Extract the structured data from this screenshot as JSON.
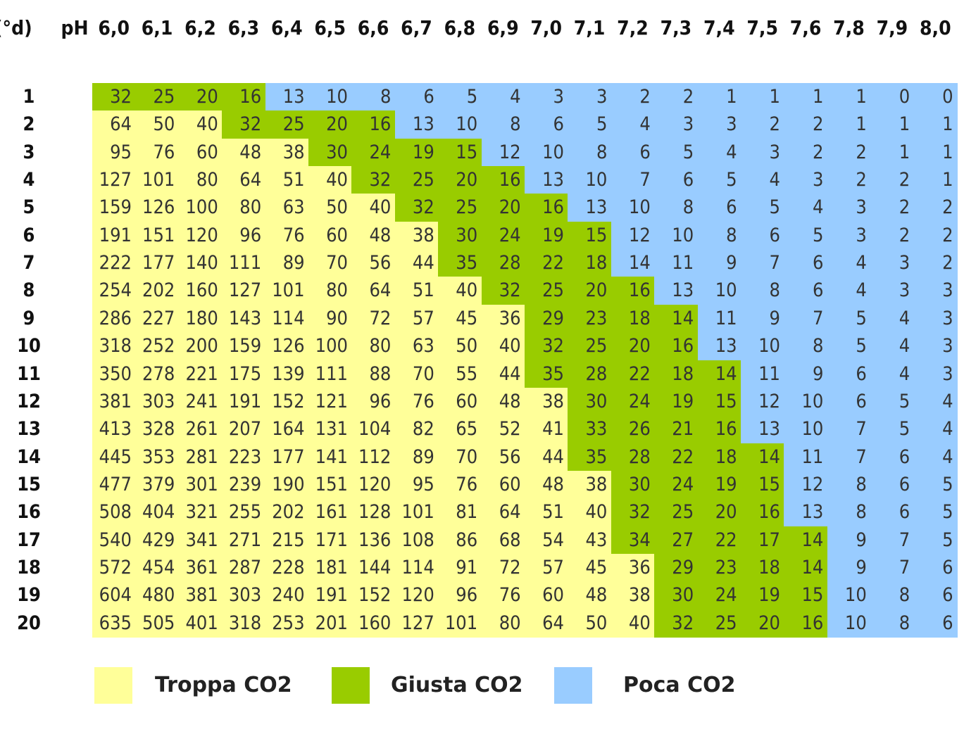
{
  "header": {
    "hardness_label": "(°d)",
    "ph_label": "pH"
  },
  "chart_data": {
    "type": "table",
    "ph_values": [
      "6,0",
      "6,1",
      "6,2",
      "6,3",
      "6,4",
      "6,5",
      "6,6",
      "6,7",
      "6,8",
      "6,9",
      "7,0",
      "7,1",
      "7,2",
      "7,3",
      "7,4",
      "7,5",
      "7,6",
      "7,8",
      "7,9",
      "8,0"
    ],
    "hardness_values": [
      "1",
      "2",
      "3",
      "4",
      "5",
      "6",
      "7",
      "8",
      "9",
      "10",
      "11",
      "12",
      "13",
      "14",
      "15",
      "16",
      "17",
      "18",
      "19",
      "20"
    ],
    "rows": [
      [
        32,
        25,
        20,
        16,
        13,
        10,
        8,
        6,
        5,
        4,
        3,
        3,
        2,
        2,
        1,
        1,
        1,
        1,
        0,
        0
      ],
      [
        64,
        50,
        40,
        32,
        25,
        20,
        16,
        13,
        10,
        8,
        6,
        5,
        4,
        3,
        3,
        2,
        2,
        1,
        1,
        1
      ],
      [
        95,
        76,
        60,
        48,
        38,
        30,
        24,
        19,
        15,
        12,
        10,
        8,
        6,
        5,
        4,
        3,
        2,
        2,
        1,
        1
      ],
      [
        127,
        101,
        80,
        64,
        51,
        40,
        32,
        25,
        20,
        16,
        13,
        10,
        7,
        6,
        5,
        4,
        3,
        2,
        2,
        1
      ],
      [
        159,
        126,
        100,
        80,
        63,
        50,
        40,
        32,
        25,
        20,
        16,
        13,
        10,
        8,
        6,
        5,
        4,
        3,
        2,
        2
      ],
      [
        191,
        151,
        120,
        96,
        76,
        60,
        48,
        38,
        30,
        24,
        19,
        15,
        12,
        10,
        8,
        6,
        5,
        3,
        2,
        2
      ],
      [
        222,
        177,
        140,
        111,
        89,
        70,
        56,
        44,
        35,
        28,
        22,
        18,
        14,
        11,
        9,
        7,
        6,
        4,
        3,
        2
      ],
      [
        254,
        202,
        160,
        127,
        101,
        80,
        64,
        51,
        40,
        32,
        25,
        20,
        16,
        13,
        10,
        8,
        6,
        4,
        3,
        3
      ],
      [
        286,
        227,
        180,
        143,
        114,
        90,
        72,
        57,
        45,
        36,
        29,
        23,
        18,
        14,
        11,
        9,
        7,
        5,
        4,
        3
      ],
      [
        318,
        252,
        200,
        159,
        126,
        100,
        80,
        63,
        50,
        40,
        32,
        25,
        20,
        16,
        13,
        10,
        8,
        5,
        4,
        3
      ],
      [
        350,
        278,
        221,
        175,
        139,
        111,
        88,
        70,
        55,
        44,
        35,
        28,
        22,
        18,
        14,
        11,
        9,
        6,
        4,
        3
      ],
      [
        381,
        303,
        241,
        191,
        152,
        121,
        96,
        76,
        60,
        48,
        38,
        30,
        24,
        19,
        15,
        12,
        10,
        6,
        5,
        4
      ],
      [
        413,
        328,
        261,
        207,
        164,
        131,
        104,
        82,
        65,
        52,
        41,
        33,
        26,
        21,
        16,
        13,
        10,
        7,
        5,
        4
      ],
      [
        445,
        353,
        281,
        223,
        177,
        141,
        112,
        89,
        70,
        56,
        44,
        35,
        28,
        22,
        18,
        14,
        11,
        7,
        6,
        4
      ],
      [
        477,
        379,
        301,
        239,
        190,
        151,
        120,
        95,
        76,
        60,
        48,
        38,
        30,
        24,
        19,
        15,
        12,
        8,
        6,
        5
      ],
      [
        508,
        404,
        321,
        255,
        202,
        161,
        128,
        101,
        81,
        64,
        51,
        40,
        32,
        25,
        20,
        16,
        13,
        8,
        6,
        5
      ],
      [
        540,
        429,
        341,
        271,
        215,
        171,
        136,
        108,
        86,
        68,
        54,
        43,
        34,
        27,
        22,
        17,
        14,
        9,
        7,
        5
      ],
      [
        572,
        454,
        361,
        287,
        228,
        181,
        144,
        114,
        91,
        72,
        57,
        45,
        36,
        29,
        23,
        18,
        14,
        9,
        7,
        6
      ],
      [
        604,
        480,
        381,
        303,
        240,
        191,
        152,
        120,
        96,
        76,
        60,
        48,
        38,
        30,
        24,
        19,
        15,
        10,
        8,
        6
      ],
      [
        635,
        505,
        401,
        318,
        253,
        201,
        160,
        127,
        101,
        80,
        64,
        50,
        40,
        32,
        25,
        20,
        16,
        10,
        8,
        6
      ]
    ],
    "zones": [
      "GGGGBBBBBBBBBBBBBBBB",
      "YYYGGGGBBBBBBBBBBBBB",
      "YYYYYGGGGBBBBBBBBBBB",
      "YYYYYYGGGGBBBBBBBBBB",
      "YYYYYYYGGGGBBBBBBBBB",
      "YYYYYYYYGGGGBBBBBBBB",
      "YYYYYYYYGGGGBBBBBBBB",
      "YYYYYYYYYGGGGBBBBBBB",
      "YYYYYYYYYYGGGGBBBBBB",
      "YYYYYYYYYYGGGGBBBBBB",
      "YYYYYYYYYYGGGGGBBBBB",
      "YYYYYYYYYYYGGGGBBBBB",
      "YYYYYYYYYYYGGGGBBBBB",
      "YYYYYYYYYYYGGGGGBBBB",
      "YYYYYYYYYYYYGGGGBBBB",
      "YYYYYYYYYYYYGGGGBBBB",
      "YYYYYYYYYYYYGGGGGBBB",
      "YYYYYYYYYYYYYGGGGBBB",
      "YYYYYYYYYYYYYGGGGBBB",
      "YYYYYYYYYYYYYGGGGBBB"
    ],
    "colors": {
      "Y": "#ffff99",
      "G": "#99cc00",
      "B": "#99ccff"
    }
  },
  "legend": {
    "items": [
      {
        "key": "Y",
        "label": "Troppa CO2",
        "color": "#ffff99"
      },
      {
        "key": "G",
        "label": "Giusta CO2",
        "color": "#99cc00"
      },
      {
        "key": "B",
        "label": "Poca CO2",
        "color": "#99ccff"
      }
    ]
  }
}
